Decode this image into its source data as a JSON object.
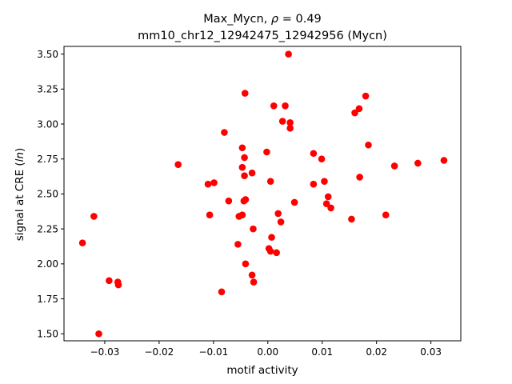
{
  "chart_data": {
    "type": "scatter",
    "title_line1": "Max_Mycn, ",
    "title_rho_symbol": "ρ",
    "title_rho_value": " = 0.49",
    "title_line2": "mm10_chr12_12942475_12942956 (Mycn)",
    "xlabel": "motif activity",
    "ylabel_prefix": "signal at CRE (",
    "ylabel_var": "ln",
    "ylabel_suffix": ")",
    "xlim": [
      -0.0375,
      0.0355
    ],
    "ylim": [
      1.45,
      3.555
    ],
    "xticks": [
      -0.03,
      -0.02,
      -0.01,
      0.0,
      0.01,
      0.02,
      0.03
    ],
    "xtick_labels": [
      "−0.03",
      "−0.02",
      "−0.01",
      "0.00",
      "0.01",
      "0.02",
      "0.03"
    ],
    "yticks": [
      1.5,
      1.75,
      2.0,
      2.25,
      2.5,
      2.75,
      3.0,
      3.25,
      3.5
    ],
    "ytick_labels": [
      "1.50",
      "1.75",
      "2.00",
      "2.25",
      "2.50",
      "2.75",
      "3.00",
      "3.25",
      "3.50"
    ],
    "grid": false,
    "marker_color": "#ff0000",
    "points": [
      {
        "x": 0.0038,
        "y": 3.5
      },
      {
        "x": -0.0042,
        "y": 3.22
      },
      {
        "x": 0.0011,
        "y": 3.13
      },
      {
        "x": 0.0032,
        "y": 3.13
      },
      {
        "x": 0.018,
        "y": 3.2
      },
      {
        "x": 0.0168,
        "y": 3.11
      },
      {
        "x": 0.016,
        "y": 3.08
      },
      {
        "x": 0.0027,
        "y": 3.02
      },
      {
        "x": 0.0041,
        "y": 3.01
      },
      {
        "x": 0.0041,
        "y": 2.97
      },
      {
        "x": -0.008,
        "y": 2.94
      },
      {
        "x": 0.0185,
        "y": 2.85
      },
      {
        "x": -0.0047,
        "y": 2.83
      },
      {
        "x": -0.0002,
        "y": 2.8
      },
      {
        "x": 0.0084,
        "y": 2.79
      },
      {
        "x": 0.0099,
        "y": 2.75
      },
      {
        "x": -0.0043,
        "y": 2.76
      },
      {
        "x": -0.0165,
        "y": 2.71
      },
      {
        "x": -0.0047,
        "y": 2.69
      },
      {
        "x": 0.0233,
        "y": 2.7
      },
      {
        "x": 0.0276,
        "y": 2.72
      },
      {
        "x": 0.0324,
        "y": 2.74
      },
      {
        "x": -0.0029,
        "y": 2.65
      },
      {
        "x": -0.0043,
        "y": 2.63
      },
      {
        "x": 0.0169,
        "y": 2.62
      },
      {
        "x": 0.0104,
        "y": 2.59
      },
      {
        "x": 0.0005,
        "y": 2.59
      },
      {
        "x": -0.011,
        "y": 2.57
      },
      {
        "x": -0.0099,
        "y": 2.58
      },
      {
        "x": 0.0084,
        "y": 2.57
      },
      {
        "x": 0.0111,
        "y": 2.48
      },
      {
        "x": -0.0072,
        "y": 2.45
      },
      {
        "x": -0.0044,
        "y": 2.45
      },
      {
        "x": -0.0041,
        "y": 2.46
      },
      {
        "x": 0.0049,
        "y": 2.44
      },
      {
        "x": 0.0108,
        "y": 2.43
      },
      {
        "x": 0.0116,
        "y": 2.4
      },
      {
        "x": 0.0019,
        "y": 2.36
      },
      {
        "x": -0.0107,
        "y": 2.35
      },
      {
        "x": -0.0047,
        "y": 2.35
      },
      {
        "x": -0.0053,
        "y": 2.34
      },
      {
        "x": 0.0217,
        "y": 2.35
      },
      {
        "x": -0.032,
        "y": 2.34
      },
      {
        "x": 0.0154,
        "y": 2.32
      },
      {
        "x": 0.0024,
        "y": 2.3
      },
      {
        "x": -0.0027,
        "y": 2.25
      },
      {
        "x": 0.0007,
        "y": 2.19
      },
      {
        "x": -0.0341,
        "y": 2.15
      },
      {
        "x": -0.0055,
        "y": 2.14
      },
      {
        "x": 0.0002,
        "y": 2.11
      },
      {
        "x": 0.0005,
        "y": 2.09
      },
      {
        "x": 0.0016,
        "y": 2.08
      },
      {
        "x": -0.0041,
        "y": 2.0
      },
      {
        "x": -0.0029,
        "y": 1.92
      },
      {
        "x": -0.0026,
        "y": 1.87
      },
      {
        "x": -0.0292,
        "y": 1.88
      },
      {
        "x": -0.0276,
        "y": 1.87
      },
      {
        "x": -0.0275,
        "y": 1.85
      },
      {
        "x": -0.0085,
        "y": 1.8
      },
      {
        "x": -0.0311,
        "y": 1.5
      }
    ]
  }
}
